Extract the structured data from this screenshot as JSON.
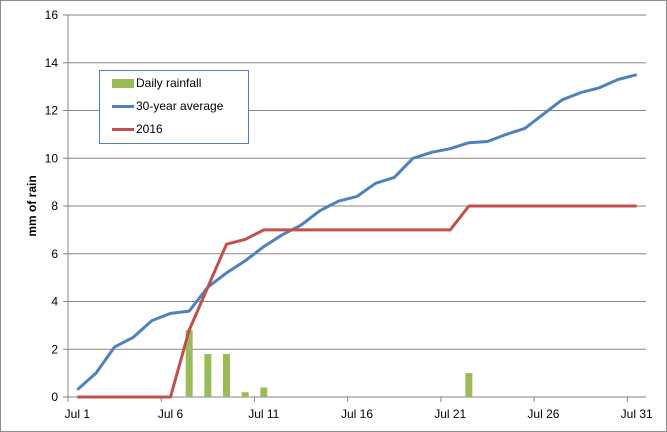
{
  "chart_data": {
    "type": "bar+line",
    "title": "",
    "xlabel": "",
    "ylabel": "mm of rain",
    "ylim": [
      0,
      16
    ],
    "yticks": [
      0,
      2,
      4,
      6,
      8,
      10,
      12,
      14,
      16
    ],
    "xtick_labels": [
      "Jul 1",
      "Jul 6",
      "Jul 11",
      "Jul 16",
      "Jul 21",
      "Jul 26",
      "Jul 31"
    ],
    "grid": true,
    "legend_position": "upper left (inside)",
    "categories": [
      "Jul 1",
      "Jul 2",
      "Jul 3",
      "Jul 4",
      "Jul 5",
      "Jul 6",
      "Jul 7",
      "Jul 8",
      "Jul 9",
      "Jul 10",
      "Jul 11",
      "Jul 12",
      "Jul 13",
      "Jul 14",
      "Jul 15",
      "Jul 16",
      "Jul 17",
      "Jul 18",
      "Jul 19",
      "Jul 20",
      "Jul 21",
      "Jul 22",
      "Jul 23",
      "Jul 24",
      "Jul 25",
      "Jul 26",
      "Jul 27",
      "Jul 28",
      "Jul 29",
      "Jul 30",
      "Jul 31"
    ],
    "series": [
      {
        "name": "Daily rainfall",
        "type": "bar",
        "color": "#9bbb59",
        "values": [
          0,
          0,
          0,
          0,
          0,
          0,
          2.8,
          1.8,
          1.8,
          0.2,
          0.4,
          0,
          0,
          0,
          0,
          0,
          0,
          0,
          0,
          0,
          0,
          1.0,
          0,
          0,
          0,
          0,
          0,
          0,
          0,
          0,
          0
        ]
      },
      {
        "name": "30-year average",
        "type": "line",
        "color": "#4f81bd",
        "values": [
          0.3,
          1.0,
          2.1,
          2.5,
          3.2,
          3.5,
          3.6,
          4.6,
          5.2,
          5.7,
          6.3,
          6.8,
          7.2,
          7.8,
          8.2,
          8.4,
          8.95,
          9.2,
          10.0,
          10.25,
          10.4,
          10.65,
          10.7,
          11.0,
          11.25,
          11.85,
          12.45,
          12.75,
          12.95,
          13.3,
          13.5
        ]
      },
      {
        "name": "2016",
        "type": "line",
        "color": "#c0504d",
        "values": [
          0,
          0,
          0,
          0,
          0,
          0,
          2.8,
          4.6,
          6.4,
          6.6,
          7.0,
          7.0,
          7.0,
          7.0,
          7.0,
          7.0,
          7.0,
          7.0,
          7.0,
          7.0,
          7.0,
          8.0,
          8.0,
          8.0,
          8.0,
          8.0,
          8.0,
          8.0,
          8.0,
          8.0,
          8.0
        ]
      }
    ]
  },
  "legend": {
    "items": [
      {
        "label": "Daily rainfall",
        "color": "#9bbb59",
        "kind": "bar"
      },
      {
        "label": "30-year average",
        "color": "#4f81bd",
        "kind": "line"
      },
      {
        "label": "2016",
        "color": "#c0504d",
        "kind": "line"
      }
    ]
  }
}
